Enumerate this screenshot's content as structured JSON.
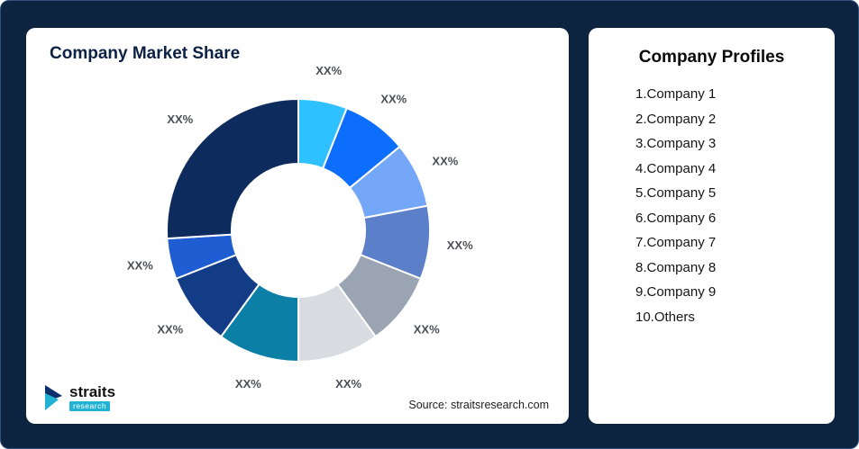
{
  "page": {
    "background": "#0d2440"
  },
  "chart_card": {
    "title": "Company Market Share",
    "source": "Source: straitsresearch.com"
  },
  "logo": {
    "name": "straits",
    "sub": "research"
  },
  "profiles": {
    "title": "Company Profiles",
    "items": [
      "1.Company 1",
      "2.Company 2",
      "3.Company 3",
      "4.Company 4",
      "5.Company 5",
      "6.Company 6",
      "7.Company 7",
      "8.Company 8",
      "9.Company 9",
      "10.Others"
    ]
  },
  "chart_data": {
    "type": "pie",
    "subtype": "donut",
    "title": "Company Market Share",
    "labels": [
      "Company 1",
      "Company 2",
      "Company 3",
      "Company 4",
      "Company 5",
      "Company 6",
      "Company 7",
      "Company 8",
      "Company 9",
      "Others"
    ],
    "values": [
      6,
      8,
      8,
      9,
      9,
      10,
      10,
      9,
      5,
      26
    ],
    "display_labels": [
      "XX%",
      "XX%",
      "XX%",
      "XX%",
      "XX%",
      "XX%",
      "XX%",
      "XX%",
      "XX%",
      "XX%"
    ],
    "colors": [
      "#2fc1ff",
      "#0d6efd",
      "#74a7f8",
      "#5b7fc9",
      "#9aa4b2",
      "#d8dce1",
      "#0c7fa6",
      "#123c85",
      "#1e5ed2",
      "#0d2b5c"
    ],
    "start_angle_deg": 0,
    "inner_radius_ratio": 0.5,
    "legend_position": "none",
    "gridlines": false,
    "source": "Source: straitsresearch.com"
  }
}
